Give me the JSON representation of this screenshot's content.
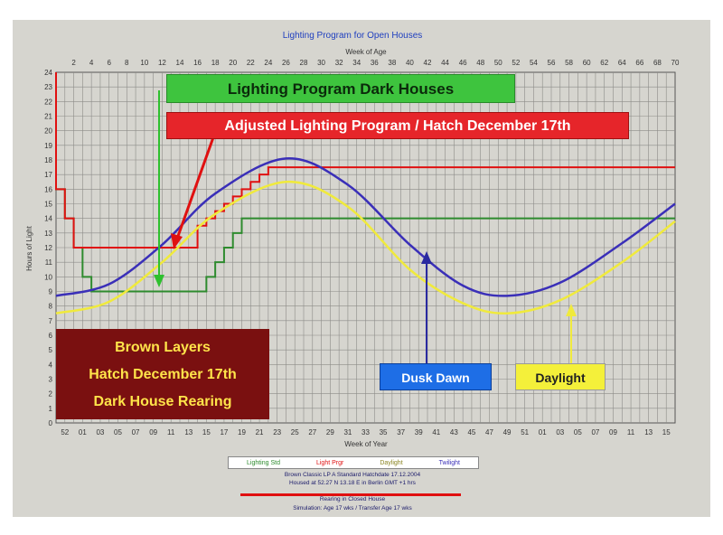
{
  "chart_data": {
    "type": "line",
    "title": "Lighting Program for Open Houses",
    "xlabel_top": "Week of Age",
    "xlabel_bottom": "Week of Year",
    "ylabel": "Hours of Light",
    "xlim": [
      0,
      70
    ],
    "ylim": [
      0,
      24
    ],
    "grid": true,
    "x_ticks_top": [
      "2",
      "4",
      "6",
      "8",
      "10",
      "12",
      "14",
      "16",
      "18",
      "20",
      "22",
      "24",
      "26",
      "28",
      "30",
      "32",
      "34",
      "36",
      "38",
      "40",
      "42",
      "44",
      "46",
      "48",
      "50",
      "52",
      "54",
      "56",
      "58",
      "60",
      "62",
      "64",
      "66",
      "68",
      "70"
    ],
    "x_ticks_bottom": [
      "52",
      "01",
      "03",
      "05",
      "07",
      "09",
      "11",
      "13",
      "15",
      "17",
      "19",
      "21",
      "23",
      "25",
      "27",
      "29",
      "31",
      "33",
      "35",
      "37",
      "39",
      "41",
      "43",
      "45",
      "47",
      "49",
      "51",
      "01",
      "03",
      "05",
      "07",
      "09",
      "11",
      "13",
      "15"
    ],
    "y_ticks": [
      "0",
      "1",
      "2",
      "3",
      "4",
      "5",
      "6",
      "7",
      "8",
      "9",
      "10",
      "11",
      "12",
      "13",
      "14",
      "15",
      "16",
      "17",
      "18",
      "19",
      "20",
      "21",
      "22",
      "23",
      "24"
    ],
    "series": [
      {
        "name": "Lighting Std",
        "color": "#2e8b2e",
        "points": [
          [
            0,
            23
          ],
          [
            0,
            16
          ],
          [
            1,
            16
          ],
          [
            1,
            14
          ],
          [
            2,
            14
          ],
          [
            2,
            12
          ],
          [
            3,
            12
          ],
          [
            3,
            10
          ],
          [
            4,
            10
          ],
          [
            4,
            9
          ],
          [
            17,
            9
          ],
          [
            17,
            10
          ],
          [
            18,
            10
          ],
          [
            18,
            11
          ],
          [
            19,
            11
          ],
          [
            19,
            12
          ],
          [
            20,
            12
          ],
          [
            20,
            13
          ],
          [
            21,
            13
          ],
          [
            21,
            14
          ],
          [
            70,
            14
          ]
        ]
      },
      {
        "name": "Light Prgr",
        "color": "#e01010",
        "points": [
          [
            0,
            24
          ],
          [
            0,
            16
          ],
          [
            1,
            16
          ],
          [
            1,
            14
          ],
          [
            2,
            14
          ],
          [
            2,
            12
          ],
          [
            16,
            12
          ],
          [
            16,
            13.5
          ],
          [
            17,
            13.5
          ],
          [
            17,
            14
          ],
          [
            18,
            14
          ],
          [
            18,
            14.5
          ],
          [
            19,
            14.5
          ],
          [
            19,
            15
          ],
          [
            20,
            15
          ],
          [
            20,
            15.5
          ],
          [
            21,
            15.5
          ],
          [
            21,
            16
          ],
          [
            22,
            16
          ],
          [
            22,
            16.5
          ],
          [
            23,
            16.5
          ],
          [
            23,
            17
          ],
          [
            24,
            17
          ],
          [
            24,
            17.5
          ],
          [
            70,
            17.5
          ]
        ]
      },
      {
        "name": "Daylight",
        "color": "#f0ea3c",
        "points": [
          [
            0,
            7.5
          ],
          [
            6,
            8.3
          ],
          [
            12,
            11
          ],
          [
            18,
            14.3
          ],
          [
            26,
            16.5
          ],
          [
            33,
            14.8
          ],
          [
            40,
            10.5
          ],
          [
            46,
            8.2
          ],
          [
            51,
            7.5
          ],
          [
            57,
            8.4
          ],
          [
            64,
            11
          ],
          [
            70,
            13.8
          ]
        ]
      },
      {
        "name": "Twilight",
        "color": "#3a2fb8",
        "points": [
          [
            0,
            8.7
          ],
          [
            6,
            9.5
          ],
          [
            12,
            12.2
          ],
          [
            18,
            15.7
          ],
          [
            26,
            18.1
          ],
          [
            33,
            16.3
          ],
          [
            40,
            12.2
          ],
          [
            46,
            9.4
          ],
          [
            51,
            8.7
          ],
          [
            57,
            9.6
          ],
          [
            64,
            12.3
          ],
          [
            70,
            15
          ]
        ]
      }
    ]
  },
  "annotations": {
    "dark_houses": "Lighting Program Dark Houses",
    "adjusted": "Adjusted Lighting Program / Hatch December 17th",
    "brown_1": "Brown Layers",
    "brown_2": "Hatch December 17th",
    "brown_3": "Dark House Rearing",
    "dusk_dawn": "Dusk   Dawn",
    "daylight": "Daylight"
  },
  "legend": {
    "item1": "Lighting Std",
    "item2": "Light Prgr",
    "item3": "Daylight",
    "item4": "Twilight"
  },
  "footer": {
    "line1": "Brown Classic LP A Standard   Hatchdate 17.12.2004",
    "line2": "Housed at 52.27 N 13.18 E  in Berlin  GMT +1 hrs",
    "line3": "Rearing in Closed House",
    "line4": "Simulation: Age 17 wks / Transfer Age 17 wks"
  }
}
